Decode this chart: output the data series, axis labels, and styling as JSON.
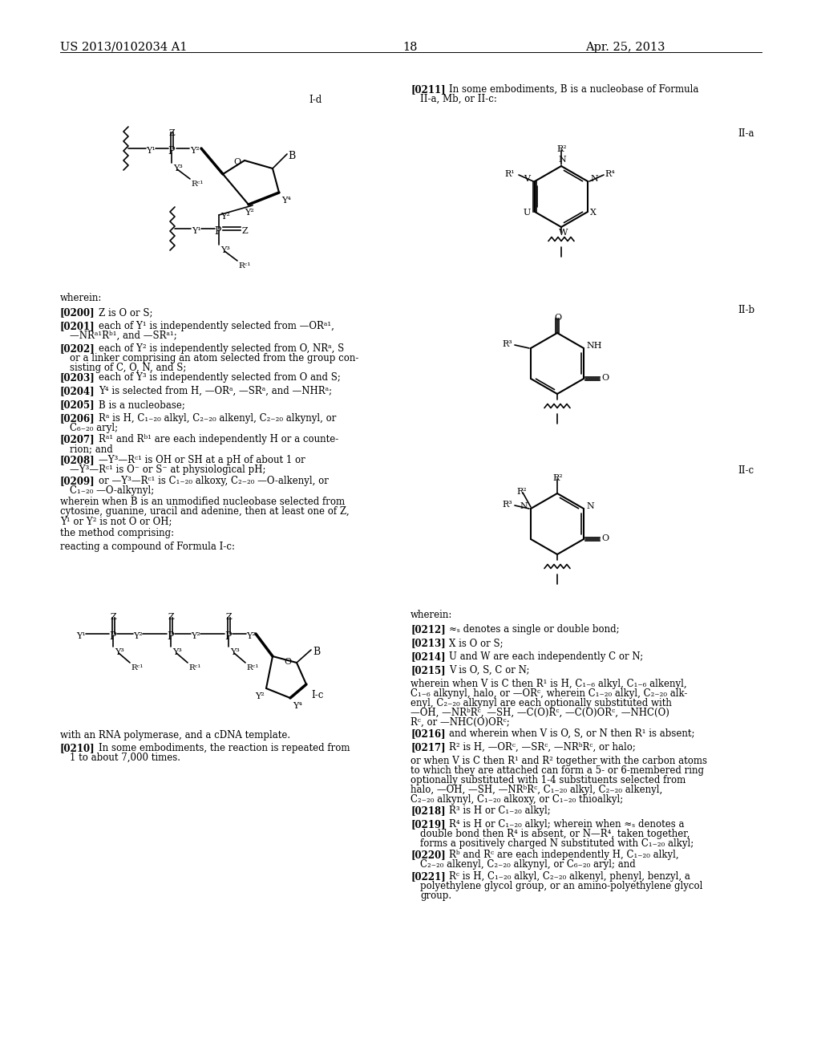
{
  "page_header_left": "US 2013/0102034 A1",
  "page_header_right": "Apr. 25, 2013",
  "page_number": "18",
  "bg": "#ffffff"
}
